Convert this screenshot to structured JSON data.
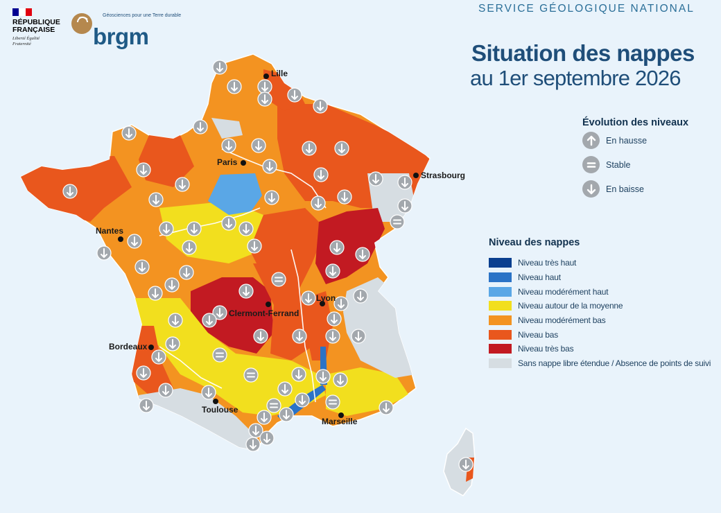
{
  "header": {
    "republique": "RÉPUBLIQUE FRANÇAISE",
    "motto": "Liberté Égalité Fraternité",
    "brgm_tagline": "Géosciences pour une Terre durable",
    "brgm_name": "brgm",
    "service": "SERVICE GÉOLOGIQUE NATIONAL",
    "title_main": "Situation des nappes",
    "title_sub": "au 1er septembre 2026"
  },
  "colors": {
    "tres_haut": "#0a3f8f",
    "haut": "#2b73c6",
    "moderement_haut": "#5aa7e6",
    "moyenne": "#f2df1e",
    "moderement_bas": "#f39321",
    "bas": "#e9571d",
    "tres_bas": "#c21a22",
    "sans_nappe": "#d6dde2",
    "icon": "#a3a8ad",
    "france_tricolor": [
      "#000091",
      "#ffffff",
      "#e1000f"
    ]
  },
  "legend_evolution": {
    "title": "Évolution des niveaux",
    "items": [
      {
        "icon": "arrow-up-icon",
        "label": "En hausse"
      },
      {
        "icon": "equals-icon",
        "label": "Stable"
      },
      {
        "icon": "arrow-down-icon",
        "label": "En baisse"
      }
    ]
  },
  "legend_niveau": {
    "title": "Niveau des nappes",
    "items": [
      {
        "key": "tres_haut",
        "label": "Niveau très haut"
      },
      {
        "key": "haut",
        "label": "Niveau haut"
      },
      {
        "key": "moderement_haut",
        "label": "Niveau modérément haut"
      },
      {
        "key": "moyenne",
        "label": "Niveau autour de la moyenne"
      },
      {
        "key": "moderement_bas",
        "label": "Niveau modérément bas"
      },
      {
        "key": "bas",
        "label": "Niveau bas"
      },
      {
        "key": "tres_bas",
        "label": "Niveau très bas"
      },
      {
        "key": "sans_nappe",
        "label": "Sans nappe libre étendue / Absence de points de suivi"
      }
    ]
  },
  "cities": {
    "lille": "Lille",
    "paris": "Paris",
    "strasbourg": "Strasbourg",
    "nantes": "Nantes",
    "lyon": "Lyon",
    "clermont": "Clermont-Ferrand",
    "bordeaux": "Bordeaux",
    "toulouse": "Toulouse",
    "marseille": "Marseille"
  }
}
